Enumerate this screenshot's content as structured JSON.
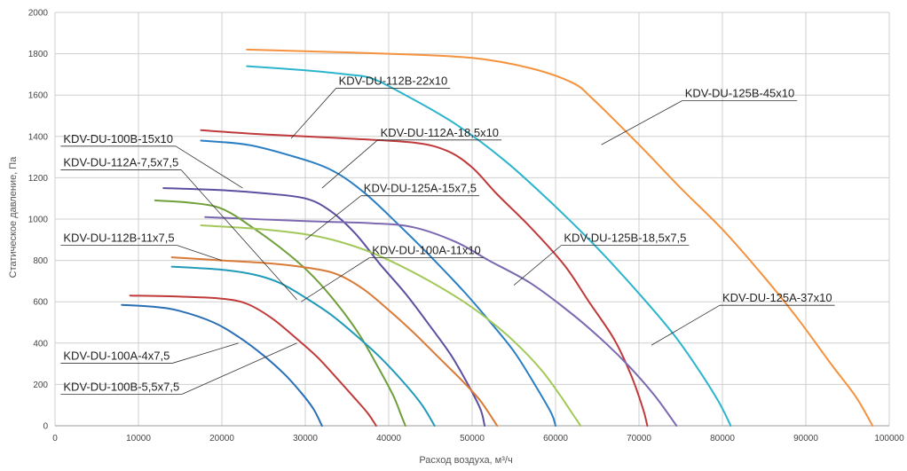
{
  "chart_data": {
    "type": "line",
    "title": "",
    "xlabel": "Расход воздуха, м³/ч",
    "ylabel": "Статическое давление, Па",
    "xlim": [
      0,
      100000
    ],
    "ylim": [
      0,
      2000
    ],
    "xticks": [
      0,
      10000,
      20000,
      30000,
      40000,
      50000,
      60000,
      70000,
      80000,
      90000,
      100000
    ],
    "yticks": [
      0,
      200,
      400,
      600,
      800,
      1000,
      1200,
      1400,
      1600,
      1800,
      2000
    ],
    "grid": true,
    "legend": "callout labels",
    "series": [
      {
        "name": "KDV-DU-125B-45x10",
        "color": "#f5923e",
        "points": [
          [
            23000,
            1820
          ],
          [
            40000,
            1800
          ],
          [
            50000,
            1780
          ],
          [
            57000,
            1730
          ],
          [
            62000,
            1660
          ],
          [
            64500,
            1580
          ],
          [
            70000,
            1360
          ],
          [
            75000,
            1150
          ],
          [
            80000,
            950
          ],
          [
            85000,
            720
          ],
          [
            89000,
            520
          ],
          [
            93000,
            300
          ],
          [
            96000,
            140
          ],
          [
            98000,
            0
          ]
        ]
      },
      {
        "name": "KDV-DU-125A-37x10",
        "color": "#2bb5cc",
        "points": [
          [
            23000,
            1740
          ],
          [
            30000,
            1720
          ],
          [
            35000,
            1700
          ],
          [
            38000,
            1680
          ],
          [
            42000,
            1600
          ],
          [
            48000,
            1460
          ],
          [
            54000,
            1280
          ],
          [
            60000,
            1060
          ],
          [
            65000,
            860
          ],
          [
            70000,
            640
          ],
          [
            74000,
            450
          ],
          [
            77000,
            280
          ],
          [
            79500,
            120
          ],
          [
            81000,
            0
          ]
        ]
      },
      {
        "name": "KDV-DU-112B-22x10",
        "color": "#c0393b",
        "points": [
          [
            17500,
            1430
          ],
          [
            25000,
            1410
          ],
          [
            35000,
            1390
          ],
          [
            43000,
            1370
          ],
          [
            47000,
            1330
          ],
          [
            50000,
            1250
          ],
          [
            53000,
            1120
          ],
          [
            57000,
            960
          ],
          [
            61000,
            780
          ],
          [
            64000,
            600
          ],
          [
            67000,
            420
          ],
          [
            69000,
            250
          ],
          [
            70500,
            80
          ],
          [
            71000,
            0
          ]
        ]
      },
      {
        "name": "KDV-DU-100B-15x10",
        "color": "#2a7fc4",
        "points": [
          [
            17500,
            1380
          ],
          [
            23000,
            1360
          ],
          [
            28000,
            1310
          ],
          [
            33000,
            1240
          ],
          [
            37000,
            1130
          ],
          [
            41000,
            980
          ],
          [
            45000,
            820
          ],
          [
            49000,
            650
          ],
          [
            52000,
            510
          ],
          [
            55000,
            360
          ],
          [
            57500,
            200
          ],
          [
            59500,
            60
          ],
          [
            60000,
            0
          ]
        ]
      },
      {
        "name": "KDV-DU-112A-18,5x10",
        "color": "#5b4fa0",
        "points": [
          [
            13000,
            1150
          ],
          [
            20000,
            1140
          ],
          [
            25000,
            1125
          ],
          [
            30000,
            1100
          ],
          [
            33000,
            1040
          ],
          [
            36000,
            930
          ],
          [
            39000,
            780
          ],
          [
            42000,
            640
          ],
          [
            45000,
            480
          ],
          [
            47500,
            340
          ],
          [
            49500,
            200
          ],
          [
            51000,
            80
          ],
          [
            51500,
            0
          ]
        ]
      },
      {
        "name": "KDV-DU-125B-18,5x7,5",
        "color": "#7b68b0",
        "points": [
          [
            18000,
            1010
          ],
          [
            30000,
            990
          ],
          [
            38000,
            980
          ],
          [
            43000,
            960
          ],
          [
            48000,
            890
          ],
          [
            52000,
            800
          ],
          [
            57000,
            690
          ],
          [
            62000,
            540
          ],
          [
            66000,
            400
          ],
          [
            69000,
            280
          ],
          [
            72000,
            140
          ],
          [
            74500,
            0
          ]
        ]
      },
      {
        "name": "KDV-DU-112A-7,5x7,5",
        "color": "#6f9f3a",
        "points": [
          [
            12000,
            1090
          ],
          [
            16000,
            1080
          ],
          [
            20000,
            1050
          ],
          [
            24000,
            950
          ],
          [
            28000,
            830
          ],
          [
            31000,
            720
          ],
          [
            34000,
            580
          ],
          [
            36500,
            440
          ],
          [
            38500,
            300
          ],
          [
            40500,
            150
          ],
          [
            41500,
            50
          ],
          [
            42000,
            0
          ]
        ]
      },
      {
        "name": "KDV-DU-125A-15x7,5",
        "color": "#a3c85a",
        "points": [
          [
            17500,
            970
          ],
          [
            25000,
            950
          ],
          [
            31000,
            920
          ],
          [
            35000,
            880
          ],
          [
            39000,
            820
          ],
          [
            44000,
            720
          ],
          [
            49000,
            600
          ],
          [
            53000,
            480
          ],
          [
            56000,
            370
          ],
          [
            58500,
            260
          ],
          [
            60500,
            150
          ],
          [
            62000,
            60
          ],
          [
            63000,
            0
          ]
        ]
      },
      {
        "name": "KDV-DU-112B-11x7,5",
        "color": "#d97a37",
        "points": [
          [
            14000,
            815
          ],
          [
            20000,
            800
          ],
          [
            26000,
            785
          ],
          [
            31000,
            760
          ],
          [
            34000,
            730
          ],
          [
            37000,
            660
          ],
          [
            40000,
            560
          ],
          [
            43000,
            450
          ],
          [
            46000,
            330
          ],
          [
            49000,
            210
          ],
          [
            51000,
            120
          ],
          [
            53000,
            0
          ]
        ]
      },
      {
        "name": "KDV-DU-100A-11x10",
        "color": "#1f9ab8",
        "points": [
          [
            14000,
            770
          ],
          [
            20000,
            755
          ],
          [
            24000,
            730
          ],
          [
            27000,
            690
          ],
          [
            30000,
            620
          ],
          [
            33000,
            540
          ],
          [
            36000,
            440
          ],
          [
            39000,
            330
          ],
          [
            42000,
            200
          ],
          [
            44000,
            100
          ],
          [
            45500,
            0
          ]
        ]
      },
      {
        "name": "KDV-DU-100A-4x7,5",
        "color": "#c03a3a",
        "points": [
          [
            9000,
            630
          ],
          [
            15000,
            625
          ],
          [
            20000,
            615
          ],
          [
            23000,
            590
          ],
          [
            26000,
            520
          ],
          [
            29000,
            420
          ],
          [
            31500,
            330
          ],
          [
            34000,
            220
          ],
          [
            36000,
            130
          ],
          [
            37500,
            60
          ],
          [
            38500,
            0
          ]
        ]
      },
      {
        "name": "KDV-DU-100B-5,5x7,5",
        "color": "#2a6fb5",
        "points": [
          [
            8000,
            585
          ],
          [
            12000,
            575
          ],
          [
            15000,
            555
          ],
          [
            19000,
            500
          ],
          [
            22000,
            430
          ],
          [
            25000,
            340
          ],
          [
            27500,
            250
          ],
          [
            29500,
            160
          ],
          [
            31000,
            80
          ],
          [
            32000,
            0
          ]
        ]
      }
    ],
    "annotations": [
      {
        "text": "KDV-DU-125B-45x10",
        "series": "KDV-DU-125B-45x10",
        "anchor": [
          65500,
          1360
        ],
        "text_at": [
          75500,
          1590
        ],
        "side": "right"
      },
      {
        "text": "KDV-DU-112B-22x10",
        "series": "KDV-DU-112B-22x10",
        "anchor": [
          28300,
          1390
        ],
        "text_at": [
          34000,
          1650
        ],
        "side": "right"
      },
      {
        "name_ref": "",
        "text": "KDV-DU-112A-18,5x10",
        "series": "KDV-DU-112A-18,5x10",
        "anchor": [
          32000,
          1150
        ],
        "text_at": [
          39000,
          1400
        ],
        "side": "right"
      },
      {
        "text": "KDV-DU-100B-15x10",
        "series": "KDV-DU-100B-15x10",
        "anchor": [
          22500,
          1150
        ],
        "text_at": [
          1000,
          1370
        ],
        "side": "left"
      },
      {
        "text": "KDV-DU-112A-7,5x7,5",
        "series": "KDV-DU-112A-7,5x7,5",
        "anchor": [
          29000,
          610
        ],
        "text_at": [
          1000,
          1255
        ],
        "side": "left"
      },
      {
        "text": "KDV-DU-125A-15x7,5",
        "series": "KDV-DU-125A-15x7,5",
        "anchor": [
          30000,
          900
        ],
        "text_at": [
          37000,
          1130
        ],
        "side": "right"
      },
      {
        "text": "KDV-DU-112B-11x7,5",
        "series": "KDV-DU-112B-11x7,5",
        "anchor": [
          20000,
          800
        ],
        "text_at": [
          1000,
          890
        ],
        "side": "left"
      },
      {
        "text": "KDV-DU-100A-11x10",
        "series": "KDV-DU-100A-11x10",
        "anchor": [
          29500,
          600
        ],
        "text_at": [
          38000,
          830
        ],
        "side": "right"
      },
      {
        "text": "KDV-DU-125B-18,5x7,5",
        "series": "KDV-DU-125B-18,5x7,5",
        "anchor": [
          55000,
          680
        ],
        "text_at": [
          61000,
          890
        ],
        "side": "right"
      },
      {
        "text": "KDV-DU-125A-37x10",
        "series": "KDV-DU-125A-37x10",
        "anchor": [
          71500,
          390
        ],
        "text_at": [
          80000,
          600
        ],
        "side": "right"
      },
      {
        "text": "KDV-DU-100A-4x7,5",
        "series": "KDV-DU-100A-4x7,5",
        "anchor": [
          22000,
          400
        ],
        "text_at": [
          1000,
          320
        ],
        "side": "left"
      },
      {
        "text": "KDV-DU-100B-5,5x7,5",
        "series": "KDV-DU-100B-5,5x7,5",
        "anchor": [
          29000,
          400
        ],
        "text_at": [
          1000,
          170
        ],
        "side": "left"
      }
    ]
  }
}
